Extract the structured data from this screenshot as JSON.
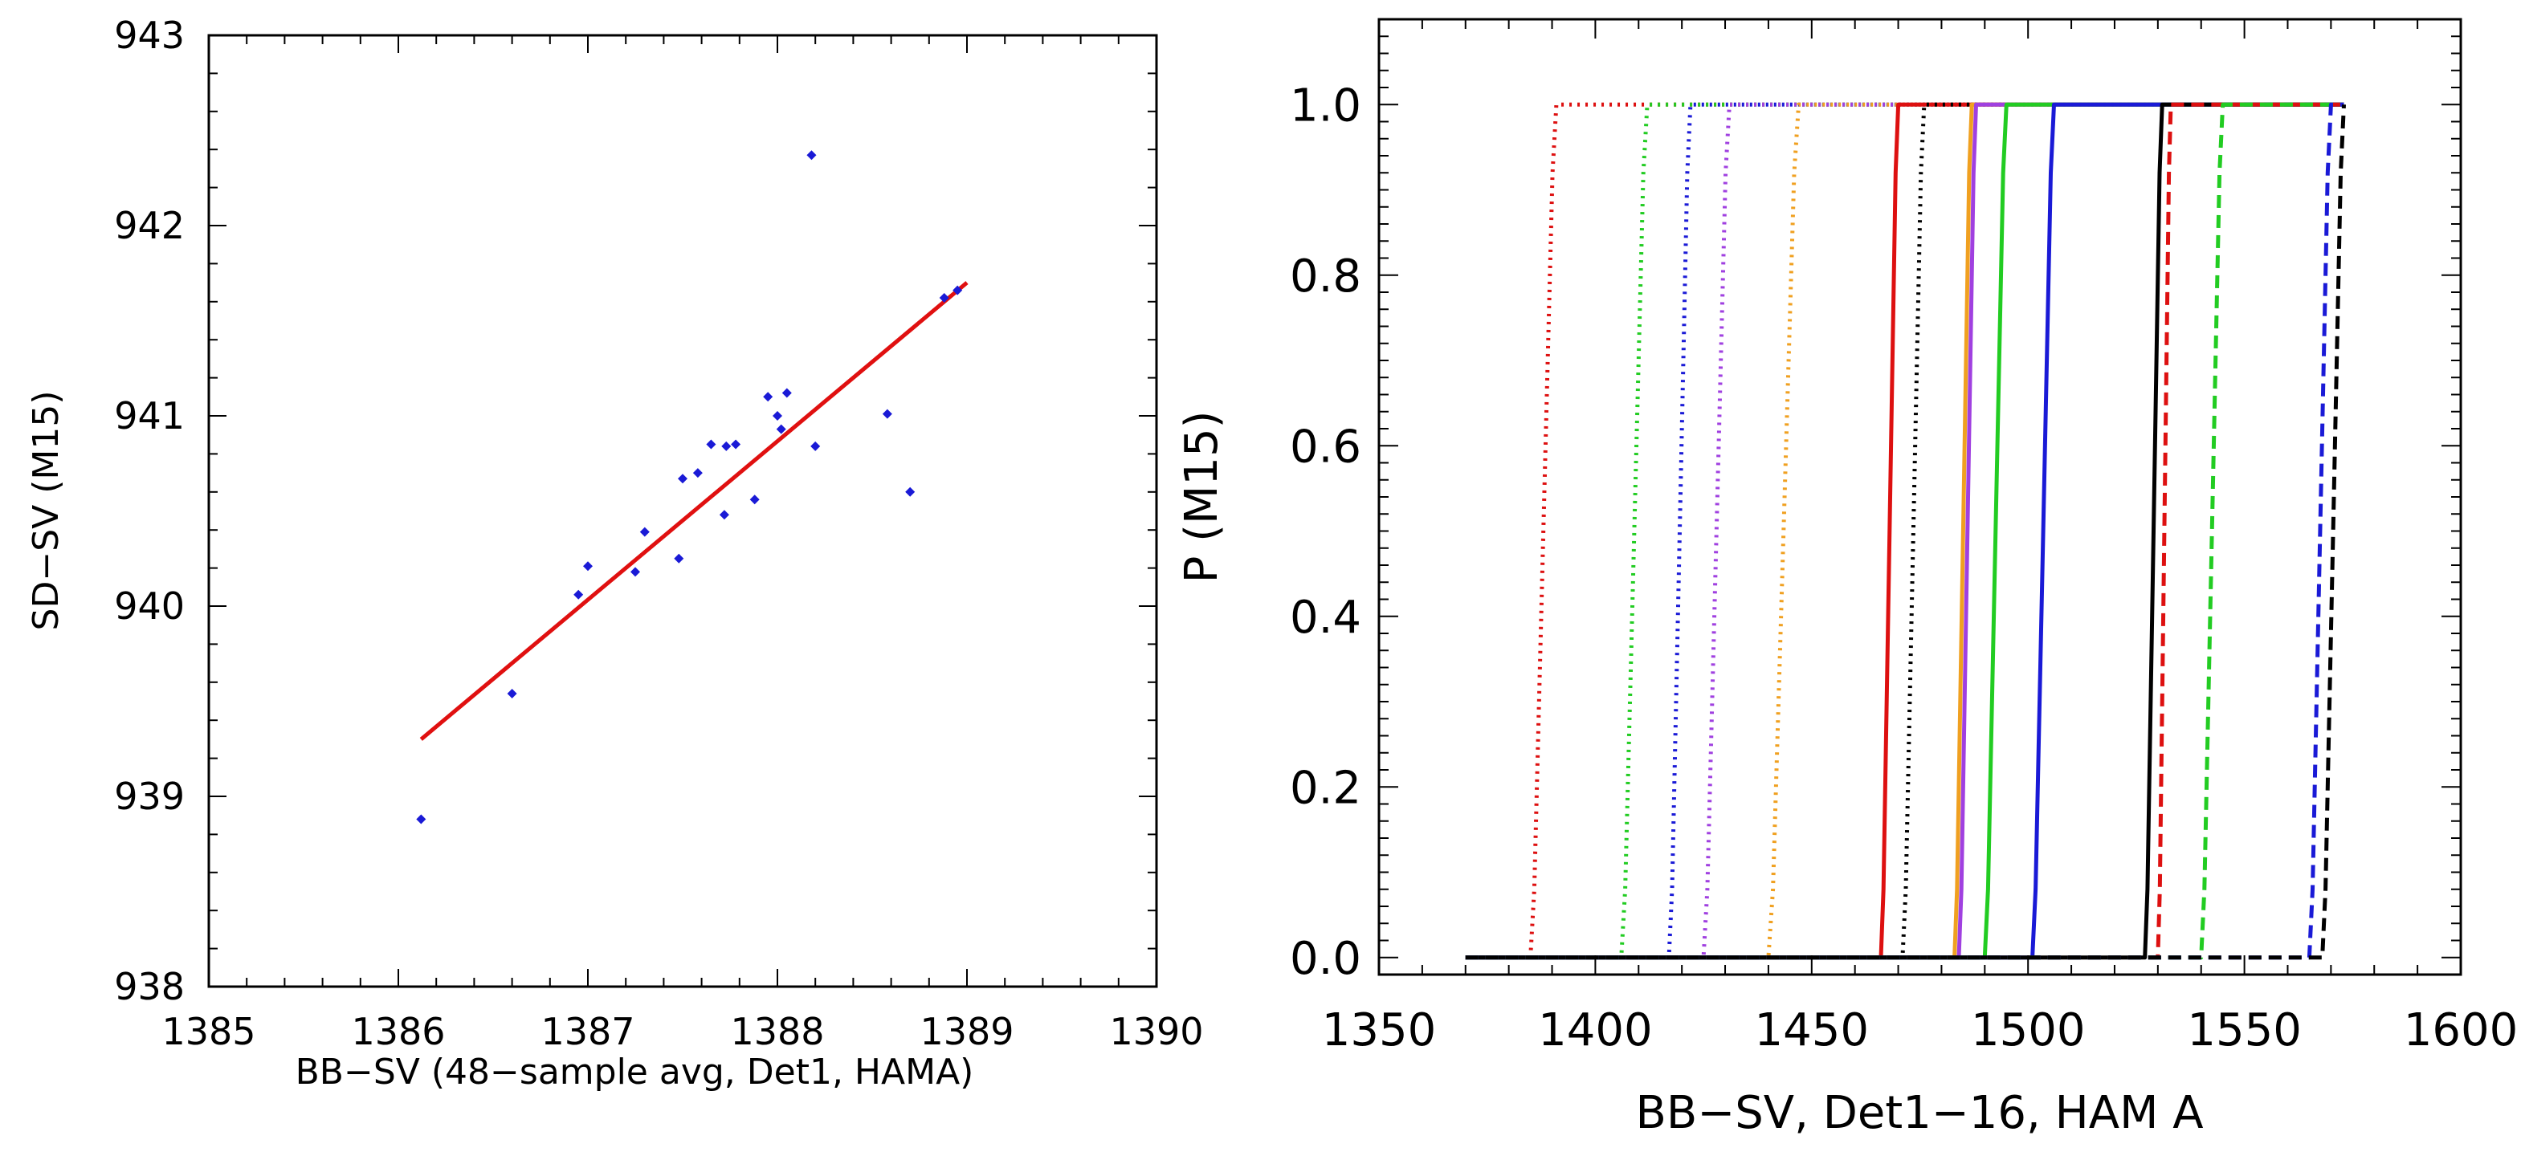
{
  "chart_data": [
    {
      "type": "scatter",
      "title": "",
      "xlabel": "BB−SV (48−sample avg, Det1, HAMA)",
      "ylabel": "SD−SV (M15)",
      "xlim": [
        1385,
        1390
      ],
      "ylim": [
        938,
        943
      ],
      "x_ticks": [
        "1385",
        "1386",
        "1387",
        "1388",
        "1389",
        "1390"
      ],
      "y_ticks": [
        "938",
        "939",
        "940",
        "941",
        "942",
        "943"
      ],
      "grid": false,
      "colors": {
        "points": "#1a1ad6",
        "fit": "#e01010"
      },
      "series": [
        {
          "name": "samples",
          "kind": "points",
          "points": [
            [
              1386.12,
              938.88
            ],
            [
              1386.6,
              939.54
            ],
            [
              1386.95,
              940.06
            ],
            [
              1387.0,
              940.21
            ],
            [
              1387.25,
              940.18
            ],
            [
              1387.3,
              940.39
            ],
            [
              1387.48,
              940.25
            ],
            [
              1387.5,
              940.67
            ],
            [
              1387.58,
              940.7
            ],
            [
              1387.65,
              940.85
            ],
            [
              1387.72,
              940.48
            ],
            [
              1387.73,
              940.84
            ],
            [
              1387.78,
              940.85
            ],
            [
              1387.88,
              940.56
            ],
            [
              1387.95,
              941.1
            ],
            [
              1388.0,
              941.0
            ],
            [
              1388.02,
              940.93
            ],
            [
              1388.05,
              941.12
            ],
            [
              1388.18,
              942.37
            ],
            [
              1388.2,
              940.84
            ],
            [
              1388.58,
              941.01
            ],
            [
              1388.7,
              940.6
            ],
            [
              1388.88,
              941.62
            ],
            [
              1388.95,
              941.66
            ]
          ]
        },
        {
          "name": "linear fit",
          "kind": "line",
          "points": [
            [
              1386.12,
              939.3
            ],
            [
              1389.0,
              941.7
            ]
          ]
        }
      ]
    },
    {
      "type": "line",
      "title": "",
      "xlabel": "BB−SV, Det1−16, HAM A",
      "ylabel": "P (M15)",
      "xlim": [
        1350,
        1600
      ],
      "ylim": [
        -0.02,
        1.1
      ],
      "x_ticks": [
        "1350",
        "1400",
        "1450",
        "1500",
        "1550",
        "1600"
      ],
      "y_ticks": [
        "0.0",
        "0.2",
        "0.4",
        "0.6",
        "0.8",
        "1.0"
      ],
      "y_tick_values": [
        0,
        0.2,
        0.4,
        0.6,
        0.8,
        1.0
      ],
      "grid": false,
      "x_range_start": 1370,
      "x_range_end": 1573,
      "series": [
        {
          "name": "det-dotted-red",
          "color": "#dd1010",
          "style": "dotted",
          "lo": 1385,
          "hi": 1391
        },
        {
          "name": "det-dotted-green",
          "color": "#22cc22",
          "style": "dotted",
          "lo": 1406,
          "hi": 1412
        },
        {
          "name": "det-dotted-blue",
          "color": "#1a1ad6",
          "style": "dotted",
          "lo": 1417,
          "hi": 1422
        },
        {
          "name": "det-dotted-purple",
          "color": "#a040e0",
          "style": "dotted",
          "lo": 1425,
          "hi": 1431
        },
        {
          "name": "det-dotted-orange",
          "color": "#f0a020",
          "style": "dotted",
          "lo": 1440,
          "hi": 1447
        },
        {
          "name": "det-solid-red",
          "color": "#dd1010",
          "style": "solid",
          "lo": 1466,
          "hi": 1470
        },
        {
          "name": "det-dotted-black",
          "color": "#000000",
          "style": "dotted",
          "lo": 1471,
          "hi": 1476
        },
        {
          "name": "det-solid-orange",
          "color": "#f0a020",
          "style": "solid",
          "lo": 1483,
          "hi": 1487
        },
        {
          "name": "det-solid-purple",
          "color": "#a040e0",
          "style": "solid",
          "lo": 1484,
          "hi": 1488
        },
        {
          "name": "det-solid-green",
          "color": "#22cc22",
          "style": "solid",
          "lo": 1490,
          "hi": 1495
        },
        {
          "name": "det-solid-blue",
          "color": "#1a1ad6",
          "style": "solid",
          "lo": 1501,
          "hi": 1506
        },
        {
          "name": "det-solid-black",
          "color": "#000000",
          "style": "solid",
          "lo": 1527,
          "hi": 1531
        },
        {
          "name": "det-dashed-red",
          "color": "#dd1010",
          "style": "dashed",
          "lo": 1530,
          "hi": 1533
        },
        {
          "name": "det-dashed-green",
          "color": "#22cc22",
          "style": "dashed",
          "lo": 1540,
          "hi": 1545
        },
        {
          "name": "det-dashed-blue",
          "color": "#1a1ad6",
          "style": "dashed",
          "lo": 1565,
          "hi": 1570
        },
        {
          "name": "det-dashed-black",
          "color": "#000000",
          "style": "dashed",
          "lo": 1568,
          "hi": 1573
        }
      ]
    }
  ]
}
